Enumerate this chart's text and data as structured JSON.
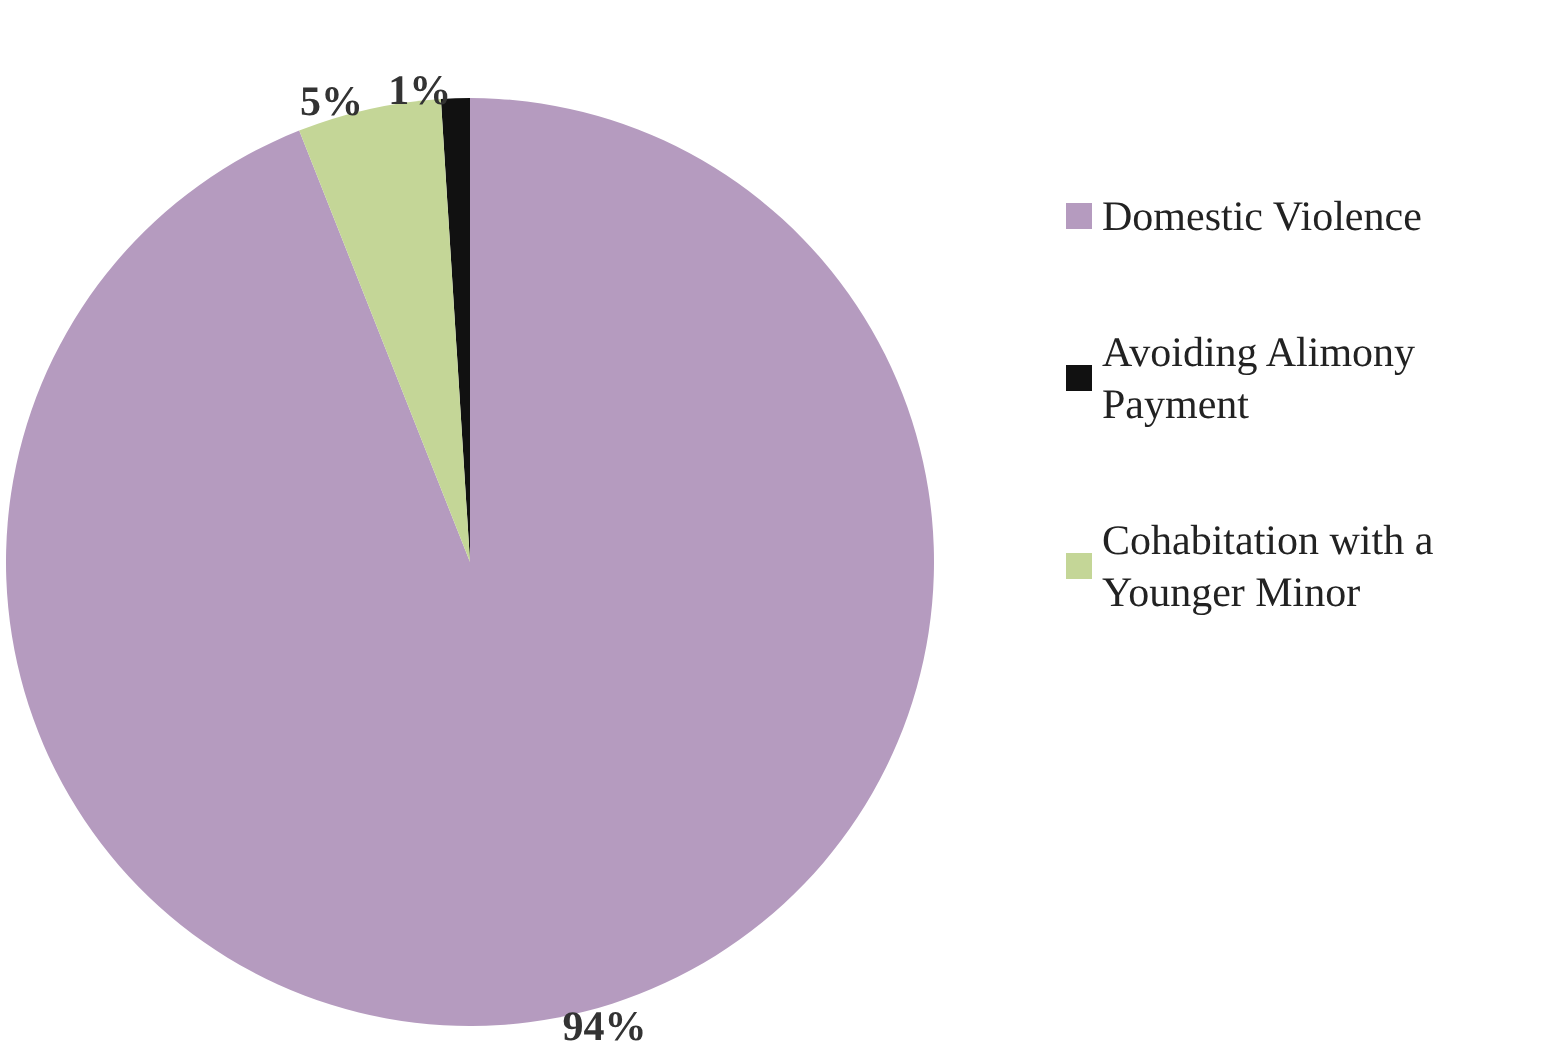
{
  "chart_data": {
    "type": "pie",
    "categories": [
      "Domestic Violence",
      "Avoiding Alimony Payment",
      "Cohabitation with a Younger Minor"
    ],
    "values": [
      94,
      1,
      5
    ],
    "colors": [
      "#b59bbf",
      "#111111",
      "#c4d697"
    ],
    "value_labels": [
      "94%",
      "1%",
      "5%"
    ],
    "legend": "right"
  }
}
